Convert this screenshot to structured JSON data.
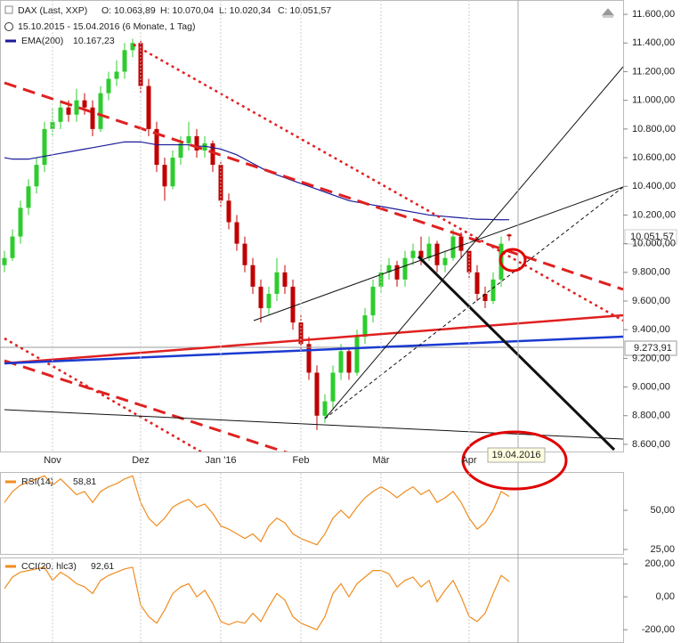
{
  "header": {
    "symbol": "DAX (Last, XXP)",
    "open": "O: 10.063,89",
    "high": "H: 10.070,04",
    "low": "L: 10.020,34",
    "close": "C: 10.051,57",
    "range": "15.10.2015 - 15.04.2016 (6 Monate, 1 Tag)"
  },
  "chart_data": [
    {
      "type": "candlestick",
      "categories": [
        null,
        null,
        null,
        null,
        null,
        null,
        "Nov",
        null,
        null,
        null,
        null,
        null,
        null,
        null,
        null,
        null,
        null,
        "Dez",
        null,
        null,
        null,
        null,
        null,
        null,
        null,
        null,
        null,
        "Jan '16",
        null,
        null,
        null,
        null,
        null,
        null,
        null,
        null,
        null,
        "Feb",
        null,
        null,
        null,
        null,
        null,
        null,
        null,
        null,
        null,
        "Mär",
        null,
        null,
        null,
        null,
        null,
        null,
        null,
        null,
        null,
        null,
        "Apr",
        null,
        null,
        null,
        null,
        null
      ],
      "series": [
        {
          "name": "DAX (Last, XXP)",
          "up_color": "#2ecc2e",
          "down_color": "#c00000",
          "values": [
            [
              9850,
              9950,
              9800,
              9900
            ],
            [
              9900,
              10100,
              9880,
              10050
            ],
            [
              10050,
              10300,
              10000,
              10250
            ],
            [
              10250,
              10450,
              10200,
              10400
            ],
            [
              10400,
              10600,
              10350,
              10550
            ],
            [
              10550,
              10850,
              10500,
              10800
            ],
            [
              10800,
              10950,
              10750,
              10850
            ],
            [
              10850,
              11000,
              10800,
              10950
            ],
            [
              10950,
              11000,
              10850,
              10900
            ],
            [
              10900,
              11080,
              10850,
              11000
            ],
            [
              11000,
              11050,
              10900,
              10950
            ],
            [
              10950,
              11000,
              10750,
              10800
            ],
            [
              10800,
              11100,
              10780,
              11050
            ],
            [
              11050,
              11200,
              11000,
              11150
            ],
            [
              11150,
              11280,
              11100,
              11200
            ],
            [
              11200,
              11400,
              11150,
              11350
            ],
            [
              11350,
              11430,
              11300,
              11400
            ],
            [
              11400,
              11420,
              11050,
              11100
            ],
            [
              11100,
              11150,
              10750,
              10800
            ],
            [
              10800,
              10850,
              10500,
              10550
            ],
            [
              10550,
              10600,
              10300,
              10400
            ],
            [
              10400,
              10650,
              10380,
              10600
            ],
            [
              10600,
              10750,
              10550,
              10700
            ],
            [
              10700,
              10850,
              10650,
              10750
            ],
            [
              10750,
              10800,
              10600,
              10650
            ],
            [
              10650,
              10750,
              10600,
              10700
            ],
            [
              10700,
              10720,
              10500,
              10550
            ],
            [
              10550,
              10580,
              10250,
              10300
            ],
            [
              10300,
              10350,
              10100,
              10150
            ],
            [
              10150,
              10200,
              9950,
              10000
            ],
            [
              10000,
              10050,
              9800,
              9850
            ],
            [
              9850,
              9900,
              9650,
              9700
            ],
            [
              9700,
              9750,
              9450,
              9550
            ],
            [
              9550,
              9700,
              9500,
              9650
            ],
            [
              9650,
              9900,
              9600,
              9800
            ],
            [
              9800,
              9850,
              9650,
              9700
            ],
            [
              9700,
              9750,
              9400,
              9450
            ],
            [
              9450,
              9500,
              9250,
              9300
            ],
            [
              9300,
              9350,
              9050,
              9100
            ],
            [
              9100,
              9150,
              8700,
              8800
            ],
            [
              8800,
              8950,
              8750,
              8900
            ],
            [
              8900,
              9150,
              8850,
              9100
            ],
            [
              9100,
              9300,
              9050,
              9250
            ],
            [
              9250,
              9280,
              9050,
              9100
            ],
            [
              9100,
              9400,
              9080,
              9350
            ],
            [
              9350,
              9550,
              9300,
              9500
            ],
            [
              9500,
              9750,
              9450,
              9700
            ],
            [
              9700,
              9850,
              9650,
              9800
            ],
            [
              9800,
              9900,
              9750,
              9850
            ],
            [
              9850,
              9880,
              9700,
              9750
            ],
            [
              9750,
              9950,
              9700,
              9900
            ],
            [
              9900,
              10000,
              9850,
              9950
            ],
            [
              9950,
              10050,
              9850,
              9900
            ],
            [
              9900,
              10050,
              9880,
              10000
            ],
            [
              10000,
              10020,
              9800,
              9850
            ],
            [
              9850,
              9950,
              9800,
              9900
            ],
            [
              9900,
              10100,
              9880,
              10050
            ],
            [
              10050,
              10080,
              9900,
              9950
            ],
            [
              9950,
              9980,
              9750,
              9800
            ],
            [
              9800,
              9850,
              9600,
              9650
            ],
            [
              9650,
              9700,
              9550,
              9600
            ],
            [
              9600,
              9800,
              9580,
              9750
            ],
            [
              9750,
              10050,
              9700,
              10000
            ],
            [
              10063.89,
              10070.04,
              10020.34,
              10051.57
            ]
          ]
        },
        {
          "name": "EMA(200)",
          "color": "#1a1a9a",
          "legend_value": "10.167,23",
          "values": [
            10600,
            10590,
            10590,
            10590,
            10600,
            10610,
            10620,
            10630,
            10640,
            10650,
            10660,
            10670,
            10680,
            10690,
            10700,
            10710,
            10710,
            10710,
            10700,
            10690,
            10690,
            10690,
            10690,
            10690,
            10680,
            10680,
            10670,
            10660,
            10640,
            10620,
            10590,
            10560,
            10530,
            10500,
            10480,
            10460,
            10440,
            10420,
            10400,
            10380,
            10360,
            10340,
            10320,
            10300,
            10290,
            10280,
            10270,
            10260,
            10250,
            10240,
            10230,
            10220,
            10210,
            10200,
            10195,
            10190,
            10185,
            10180,
            10175,
            10170,
            10170,
            10168,
            10167,
            10167.23
          ]
        }
      ],
      "ylim": [
        8550,
        11700
      ],
      "yticks": [
        {
          "value": 8600,
          "label": "8.600,00"
        },
        {
          "value": 8800,
          "label": "8.800,00"
        },
        {
          "value": 9000,
          "label": "9.000,00"
        },
        {
          "value": 9200,
          "label": "9.200,00"
        },
        {
          "value": 9400,
          "label": "9.400,00"
        },
        {
          "value": 9600,
          "label": "9.600,00"
        },
        {
          "value": 9800,
          "label": "9.800,00"
        },
        {
          "value": 10000,
          "label": "10.000,00"
        },
        {
          "value": 10200,
          "label": "10.200,00"
        },
        {
          "value": 10400,
          "label": "10.400,00"
        },
        {
          "value": 10600,
          "label": "10.600,00"
        },
        {
          "value": 10800,
          "label": "10.800,00"
        },
        {
          "value": 11000,
          "label": "11.000,00"
        },
        {
          "value": 11200,
          "label": "11.200,00"
        },
        {
          "value": 11400,
          "label": "11.400,00"
        },
        {
          "value": 11600,
          "label": "11.600,00"
        }
      ],
      "annotations": {
        "last_price": "10.051,57",
        "marked_price": "9.273,91",
        "cursor_date": "19.04.2016"
      }
    },
    {
      "type": "line",
      "series": [
        {
          "name": "RSI(14)",
          "color": "#f08c1e",
          "legend_value": "58,81",
          "values": [
            55,
            62,
            66,
            68,
            70,
            72,
            66,
            70,
            65,
            60,
            62,
            55,
            62,
            65,
            67,
            70,
            72,
            55,
            45,
            40,
            45,
            52,
            55,
            57,
            52,
            54,
            48,
            40,
            38,
            35,
            32,
            35,
            30,
            40,
            45,
            42,
            35,
            32,
            30,
            28,
            35,
            45,
            50,
            45,
            52,
            58,
            62,
            65,
            62,
            58,
            62,
            65,
            60,
            63,
            55,
            58,
            62,
            55,
            45,
            38,
            42,
            50,
            62,
            58.81
          ]
        }
      ],
      "ylim": [
        20,
        73
      ],
      "yticks": [
        {
          "value": 25,
          "label": "25,00"
        },
        {
          "value": 50,
          "label": "50,00"
        }
      ]
    },
    {
      "type": "line",
      "series": [
        {
          "name": "CCI(20, hlc3)",
          "color": "#f08c1e",
          "legend_value": "92,61",
          "values": [
            50,
            120,
            150,
            160,
            170,
            180,
            100,
            150,
            120,
            80,
            60,
            20,
            100,
            130,
            150,
            170,
            180,
            -50,
            -120,
            -160,
            -80,
            20,
            60,
            80,
            0,
            40,
            -40,
            -150,
            -170,
            -150,
            -160,
            -100,
            -150,
            -60,
            20,
            -20,
            -120,
            -160,
            -180,
            -200,
            -120,
            20,
            80,
            0,
            80,
            120,
            160,
            160,
            140,
            60,
            100,
            120,
            60,
            100,
            -30,
            40,
            100,
            0,
            -120,
            -150,
            -100,
            20,
            130,
            92.61
          ]
        }
      ],
      "ylim": [
        -270,
        250
      ],
      "yticks": [
        {
          "value": -200,
          "label": "-200,00"
        },
        {
          "value": 0,
          "label": "0,00"
        },
        {
          "value": 200,
          "label": "200,00"
        }
      ]
    }
  ]
}
